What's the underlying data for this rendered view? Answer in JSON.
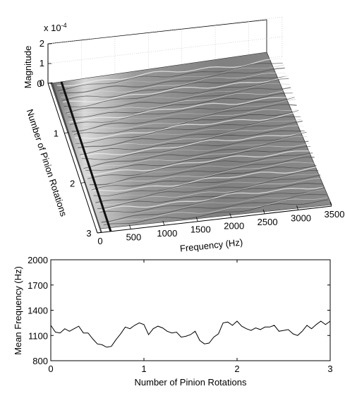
{
  "chart_data": [
    {
      "type": "surface",
      "zlabel": "Magnitude",
      "zscale_label": "x 10",
      "zscale_exponent": "-4",
      "xlabel": "Frequency (Hz)",
      "ylabel": "Number of Pinion Rotations",
      "zlim": [
        0,
        2
      ],
      "z_ticks": [
        "0",
        "1",
        "2"
      ],
      "xlim": [
        0,
        3500
      ],
      "x_ticks": [
        "0",
        "500",
        "1000",
        "1500",
        "2000",
        "2500",
        "3000",
        "3500"
      ],
      "ylim": [
        0,
        3
      ],
      "y_ticks": [
        "0",
        "1",
        "2",
        "3"
      ],
      "colormap": "grayscale",
      "grid": true
    },
    {
      "type": "line",
      "xlabel": "Number of Pinion Rotations",
      "ylabel": "Mean Frequency (Hz)",
      "xlim": [
        0,
        3
      ],
      "ylim": [
        800,
        2000
      ],
      "x_ticks": [
        "0",
        "1",
        "2",
        "3"
      ],
      "y_ticks": [
        "800",
        "1100",
        "1400",
        "1700",
        "2000"
      ],
      "grid": false,
      "series": [
        {
          "x": [
            0,
            0.05,
            0.1,
            0.15,
            0.2,
            0.25,
            0.3,
            0.35,
            0.4,
            0.45,
            0.5,
            0.55,
            0.6,
            0.65,
            0.7,
            0.75,
            0.8,
            0.85,
            0.9,
            0.95,
            1.0,
            1.05,
            1.1,
            1.15,
            1.2,
            1.25,
            1.3,
            1.35,
            1.4,
            1.45,
            1.5,
            1.55,
            1.6,
            1.65,
            1.7,
            1.75,
            1.8,
            1.85,
            1.9,
            1.95,
            2.0,
            2.05,
            2.1,
            2.15,
            2.2,
            2.25,
            2.3,
            2.35,
            2.4,
            2.45,
            2.5,
            2.55,
            2.6,
            2.65,
            2.7,
            2.75,
            2.8,
            2.85,
            2.9,
            2.95,
            3.0
          ],
          "values": [
            1220,
            1140,
            1130,
            1180,
            1150,
            1180,
            1210,
            1130,
            1130,
            1060,
            1000,
            990,
            960,
            970,
            1050,
            1120,
            1200,
            1180,
            1220,
            1250,
            1230,
            1110,
            1180,
            1210,
            1190,
            1150,
            1130,
            1140,
            1080,
            1090,
            1110,
            1150,
            1040,
            1000,
            1010,
            1080,
            1120,
            1250,
            1260,
            1220,
            1270,
            1210,
            1180,
            1160,
            1190,
            1170,
            1200,
            1200,
            1220,
            1150,
            1160,
            1170,
            1120,
            1100,
            1150,
            1220,
            1180,
            1230,
            1270,
            1230,
            1270
          ]
        }
      ]
    }
  ]
}
